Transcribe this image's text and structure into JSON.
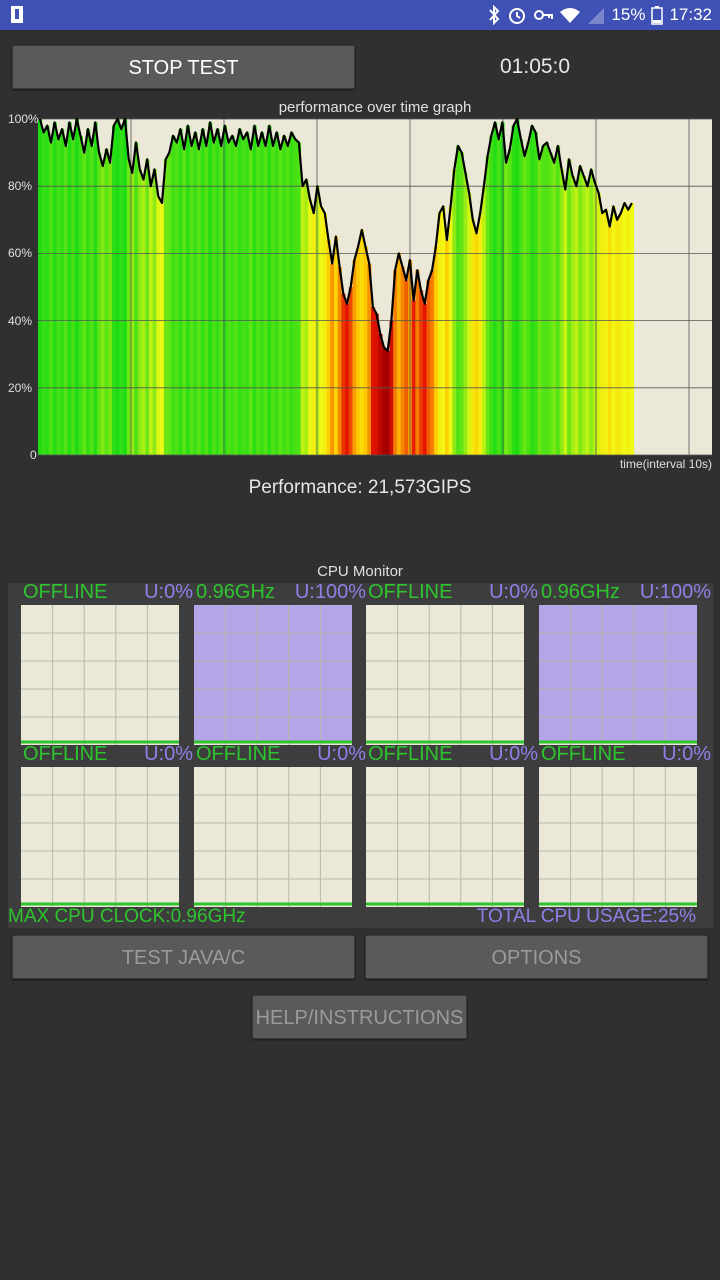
{
  "status_bar": {
    "battery": "15%",
    "time": "17:32"
  },
  "controls": {
    "stop_label": "STOP TEST",
    "timer": "01:05:0"
  },
  "perf_graph": {
    "title": "performance over time graph",
    "x_label": "time(interval 10s)",
    "y_ticks": [
      "100%",
      "80%",
      "60%",
      "40%",
      "20%",
      "0"
    ]
  },
  "chart_data": {
    "type": "area",
    "title": "performance over time graph",
    "xlabel": "time(interval 10s)",
    "ylabel": "",
    "ylim": [
      0,
      100
    ],
    "y_ticks": [
      0,
      20,
      40,
      60,
      80,
      100
    ],
    "grid": true,
    "series": [
      {
        "values": [
          100,
          96,
          98,
          93,
          99,
          94,
          97,
          92,
          99,
          94,
          100,
          95,
          90,
          97,
          92,
          99,
          90,
          86,
          91,
          87,
          98,
          100,
          97,
          100,
          88,
          84,
          93,
          85,
          82,
          88,
          80,
          85,
          77,
          75,
          88,
          90,
          95,
          93,
          97,
          91,
          98,
          92,
          96,
          91,
          97,
          92,
          99,
          93,
          97,
          92,
          98,
          93,
          95,
          92,
          97,
          94,
          96,
          91,
          98,
          92,
          96,
          92,
          98,
          92,
          96,
          91,
          95,
          92,
          96,
          94,
          93,
          80,
          82,
          76,
          72,
          80,
          74,
          72,
          64,
          57,
          65,
          56,
          48,
          45,
          50,
          58,
          62,
          67,
          62,
          57,
          44,
          42,
          36,
          32,
          31,
          40,
          55,
          60,
          56,
          52,
          58,
          46,
          55,
          49,
          45,
          52,
          55,
          62,
          72,
          74,
          64,
          74,
          85,
          92,
          90,
          84,
          78,
          70,
          66,
          72,
          80,
          89,
          95,
          99,
          94,
          99,
          87,
          91,
          98,
          100,
          94,
          89,
          93,
          98,
          96,
          88,
          92,
          93,
          90,
          87,
          92,
          85,
          79,
          88,
          83,
          80,
          86,
          83,
          80,
          85,
          81,
          78,
          72,
          73,
          68,
          74,
          70,
          72,
          75,
          73,
          75
        ]
      }
    ]
  },
  "performance_label": "Performance: 21,573GIPS",
  "cpu_monitor": {
    "title": "CPU Monitor",
    "cores": [
      {
        "status": "OFFLINE",
        "usage": "U:0%",
        "usage_value": 0
      },
      {
        "status": "0.96GHz",
        "usage": "U:100%",
        "usage_value": 100
      },
      {
        "status": "OFFLINE",
        "usage": "U:0%",
        "usage_value": 0
      },
      {
        "status": "0.96GHz",
        "usage": "U:100%",
        "usage_value": 100
      },
      {
        "status": "OFFLINE",
        "usage": "U:0%",
        "usage_value": 0
      },
      {
        "status": "OFFLINE",
        "usage": "U:0%",
        "usage_value": 0
      },
      {
        "status": "OFFLINE",
        "usage": "U:0%",
        "usage_value": 0
      },
      {
        "status": "OFFLINE",
        "usage": "U:0%",
        "usage_value": 0
      }
    ],
    "max_clock": "MAX CPU CLOCK:0.96GHz",
    "total_usage": "TOTAL CPU USAGE:25%"
  },
  "buttons": {
    "test_label": "TEST JAVA/C",
    "options_label": "OPTIONS",
    "help_label": "HELP/INSTRUCTIONS"
  },
  "colors": {
    "status_bar": "#3f51b5",
    "online": "#2ec42e",
    "usage": "#8f7fe8",
    "cpu_fill": "#b3a5e8",
    "graph_bg": "#ebe8d8"
  }
}
